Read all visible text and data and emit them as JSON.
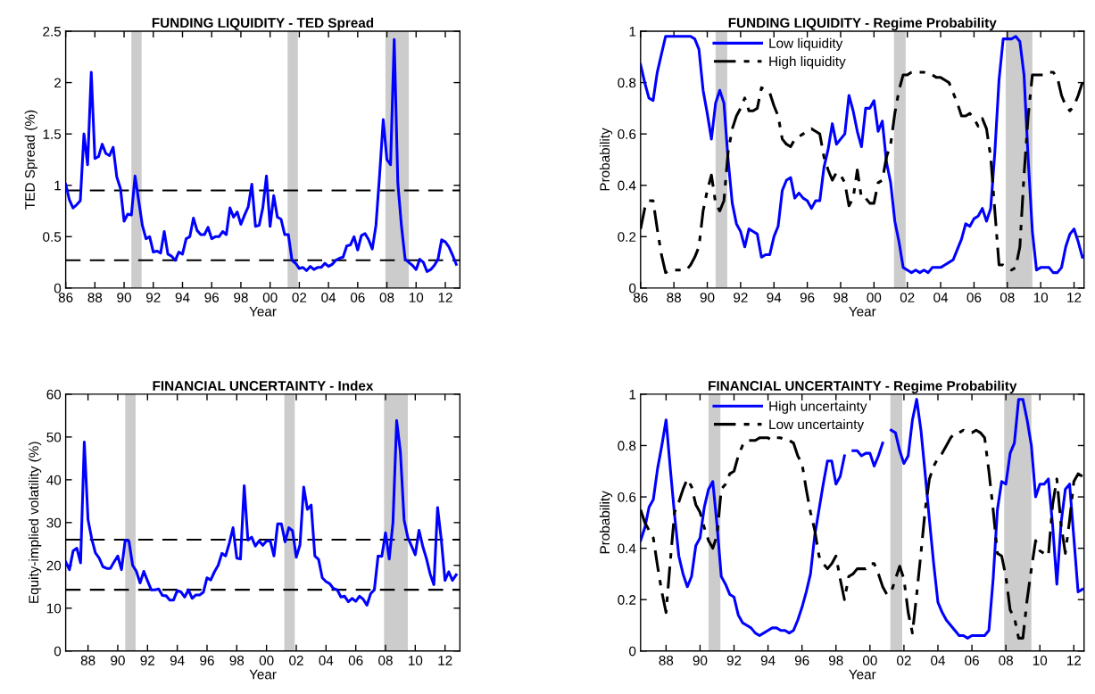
{
  "chart_data": [
    {
      "type": "line",
      "title": "FUNDING LIQUIDITY - TED Spread",
      "xlabel": "Year",
      "ylabel": "TED Spread (%)",
      "x": [
        1986,
        1986.25,
        1986.5,
        1986.75,
        1987,
        1987.25,
        1987.5,
        1987.75,
        1988,
        1988.25,
        1988.5,
        1988.75,
        1989,
        1989.25,
        1989.5,
        1989.75,
        1990,
        1990.25,
        1990.5,
        1990.75,
        1991,
        1991.25,
        1991.5,
        1991.75,
        1992,
        1992.25,
        1992.5,
        1992.75,
        1993,
        1993.25,
        1993.5,
        1993.75,
        1994,
        1994.25,
        1994.5,
        1994.75,
        1995,
        1995.25,
        1995.5,
        1995.75,
        1996,
        1996.25,
        1996.5,
        1996.75,
        1997,
        1997.25,
        1997.5,
        1997.75,
        1998,
        1998.25,
        1998.5,
        1998.75,
        1999,
        1999.25,
        1999.5,
        1999.75,
        2000,
        2000.25,
        2000.5,
        2000.75,
        2001,
        2001.25,
        2001.5,
        2001.75,
        2002,
        2002.25,
        2002.5,
        2002.75,
        2003,
        2003.25,
        2003.5,
        2003.75,
        2004,
        2004.25,
        2004.5,
        2004.75,
        2005,
        2005.25,
        2005.5,
        2005.75,
        2006,
        2006.25,
        2006.5,
        2006.75,
        2007,
        2007.25,
        2007.5,
        2007.75,
        2008,
        2008.25,
        2008.5,
        2008.75,
        2009,
        2009.25,
        2009.5,
        2009.75,
        2010,
        2010.25,
        2010.5,
        2010.75,
        2011,
        2011.25,
        2011.5,
        2011.75,
        2012,
        2012.25,
        2012.5,
        2012.75
      ],
      "series": [
        {
          "color": "#0000ff",
          "line_style": "solid",
          "values": [
            1.01,
            0.86,
            0.78,
            0.81,
            0.85,
            1.5,
            1.2,
            2.1,
            1.26,
            1.28,
            1.4,
            1.31,
            1.29,
            1.37,
            1.08,
            0.97,
            0.65,
            0.72,
            0.71,
            1.09,
            0.85,
            0.61,
            0.48,
            0.5,
            0.35,
            0.36,
            0.34,
            0.55,
            0.33,
            0.31,
            0.27,
            0.35,
            0.33,
            0.48,
            0.5,
            0.68,
            0.56,
            0.52,
            0.52,
            0.59,
            0.48,
            0.5,
            0.5,
            0.55,
            0.52,
            0.78,
            0.69,
            0.74,
            0.62,
            0.71,
            0.79,
            1.01,
            0.6,
            0.61,
            0.78,
            1.09,
            0.6,
            0.9,
            0.69,
            0.67,
            0.52,
            0.52,
            0.27,
            0.24,
            0.19,
            0.2,
            0.17,
            0.21,
            0.18,
            0.2,
            0.2,
            0.24,
            0.21,
            0.23,
            0.27,
            0.29,
            0.3,
            0.41,
            0.42,
            0.5,
            0.37,
            0.51,
            0.53,
            0.47,
            0.38,
            0.61,
            1.1,
            1.64,
            1.25,
            1.2,
            2.42,
            1.02,
            0.6,
            0.28,
            0.25,
            0.22,
            0.18,
            0.28,
            0.25,
            0.16,
            0.18,
            0.22,
            0.28,
            0.47,
            0.45,
            0.4,
            0.32,
            0.23
          ]
        }
      ],
      "xlim": [
        1986,
        2013
      ],
      "xticks": [
        {
          "value": 1986,
          "label": "86"
        },
        {
          "value": 1988,
          "label": "88"
        },
        {
          "value": 1990,
          "label": "90"
        },
        {
          "value": 1992,
          "label": "92"
        },
        {
          "value": 1994,
          "label": "94"
        },
        {
          "value": 1996,
          "label": "96"
        },
        {
          "value": 1998,
          "label": "98"
        },
        {
          "value": 2000,
          "label": "00"
        },
        {
          "value": 2002,
          "label": "02"
        },
        {
          "value": 2004,
          "label": "04"
        },
        {
          "value": 2006,
          "label": "06"
        },
        {
          "value": 2008,
          "label": "08"
        },
        {
          "value": 2010,
          "label": "10"
        },
        {
          "value": 2012,
          "label": "12"
        }
      ],
      "ylim": [
        0,
        2.5
      ],
      "yticks": [
        0,
        0.5,
        1,
        1.5,
        2,
        2.5
      ],
      "ref_lines": [
        {
          "axis": "y",
          "value": 0.95,
          "color": "#000000",
          "line_style": "dashed"
        },
        {
          "axis": "y",
          "value": 0.27,
          "color": "#000000",
          "line_style": "dashed"
        }
      ],
      "bands": [
        {
          "axis": "x",
          "from": 1990.5,
          "to": 1991.2,
          "color": "#cccccc"
        },
        {
          "axis": "x",
          "from": 2001.2,
          "to": 2001.9,
          "color": "#cccccc"
        },
        {
          "axis": "x",
          "from": 2007.9,
          "to": 2009.5,
          "color": "#cccccc"
        }
      ],
      "grid": false
    },
    {
      "type": "line",
      "title": "FUNDING LIQUIDITY - Regime Probability",
      "xlabel": "Year",
      "ylabel": "Probability",
      "x": [
        1986,
        1986.25,
        1986.5,
        1986.75,
        1987,
        1987.25,
        1987.5,
        1987.75,
        1988,
        1988.25,
        1988.5,
        1988.75,
        1989,
        1989.25,
        1989.5,
        1989.75,
        1990,
        1990.25,
        1990.5,
        1990.75,
        1991,
        1991.25,
        1991.5,
        1991.75,
        1992,
        1992.25,
        1992.5,
        1992.75,
        1993,
        1993.25,
        1993.5,
        1993.75,
        1994,
        1994.25,
        1994.5,
        1994.75,
        1995,
        1995.25,
        1995.5,
        1995.75,
        1996,
        1996.25,
        1996.5,
        1996.75,
        1997,
        1997.25,
        1997.5,
        1997.75,
        1998,
        1998.25,
        1998.5,
        1998.75,
        1999,
        1999.25,
        1999.5,
        1999.75,
        2000,
        2000.25,
        2000.5,
        2000.75,
        2001,
        2001.25,
        2001.5,
        2001.75,
        2002,
        2002.25,
        2002.5,
        2002.75,
        2003,
        2003.25,
        2003.5,
        2003.75,
        2004,
        2004.25,
        2004.5,
        2004.75,
        2005,
        2005.25,
        2005.5,
        2005.75,
        2006,
        2006.25,
        2006.5,
        2006.75,
        2007,
        2007.25,
        2007.5,
        2007.75,
        2008,
        2008.25,
        2008.5,
        2008.75,
        2009,
        2009.25,
        2009.5,
        2009.75,
        2010,
        2010.25,
        2010.5,
        2010.75,
        2011,
        2011.25,
        2011.5,
        2011.75,
        2012,
        2012.25,
        2012.5
      ],
      "series": [
        {
          "name": "Low liquidity",
          "color": "#0000ff",
          "line_style": "solid",
          "values": [
            0.87,
            0.8,
            0.74,
            0.73,
            0.84,
            0.91,
            0.98,
            0.98,
            0.98,
            0.98,
            0.98,
            0.98,
            0.98,
            0.97,
            0.93,
            0.77,
            0.68,
            0.58,
            0.72,
            0.77,
            0.72,
            0.5,
            0.33,
            0.25,
            0.22,
            0.16,
            0.23,
            0.22,
            0.21,
            0.12,
            0.13,
            0.13,
            0.2,
            0.24,
            0.38,
            0.42,
            0.43,
            0.35,
            0.37,
            0.35,
            0.34,
            0.31,
            0.34,
            0.34,
            0.47,
            0.54,
            0.64,
            0.56,
            0.58,
            0.6,
            0.75,
            0.69,
            0.61,
            0.55,
            0.7,
            0.7,
            0.73,
            0.61,
            0.65,
            0.49,
            0.41,
            0.26,
            0.18,
            0.08,
            0.07,
            0.06,
            0.07,
            0.06,
            0.07,
            0.06,
            0.08,
            0.08,
            0.08,
            0.09,
            0.1,
            0.11,
            0.15,
            0.19,
            0.25,
            0.24,
            0.27,
            0.28,
            0.31,
            0.26,
            0.31,
            0.53,
            0.81,
            0.97,
            0.97,
            0.97,
            0.98,
            0.96,
            0.83,
            0.5,
            0.22,
            0.07,
            0.08,
            0.08,
            0.08,
            0.06,
            0.06,
            0.08,
            0.16,
            0.21,
            0.23,
            0.18,
            0.12
          ]
        },
        {
          "name": "High liquidity",
          "color": "#000000",
          "line_style": "dashdot",
          "values": [
            0.23,
            0.31,
            0.34,
            0.34,
            0.23,
            0.13,
            0.06,
            0.07,
            0.07,
            0.07,
            0.07,
            0.07,
            0.09,
            0.12,
            0.16,
            0.3,
            0.38,
            0.44,
            0.33,
            0.3,
            0.34,
            0.53,
            0.62,
            0.67,
            0.7,
            0.74,
            0.69,
            0.69,
            0.7,
            0.78,
            0.77,
            0.76,
            0.71,
            0.67,
            0.58,
            0.56,
            0.55,
            0.58,
            0.59,
            0.6,
            0.61,
            0.62,
            0.61,
            0.6,
            0.51,
            0.46,
            0.42,
            0.45,
            0.44,
            0.41,
            0.32,
            0.35,
            0.46,
            0.35,
            0.35,
            0.33,
            0.33,
            0.41,
            0.42,
            0.51,
            0.56,
            0.68,
            0.77,
            0.83,
            0.83,
            0.84,
            0.84,
            0.84,
            0.84,
            0.83,
            0.83,
            0.82,
            0.82,
            0.81,
            0.8,
            0.76,
            0.72,
            0.67,
            0.67,
            0.68,
            0.66,
            0.63,
            0.66,
            0.62,
            0.51,
            0.3,
            0.09,
            0.09,
            0.08,
            0.07,
            0.08,
            0.16,
            0.44,
            0.67,
            0.83,
            0.83,
            0.83,
            0.83,
            0.84,
            0.84,
            0.82,
            0.75,
            0.71,
            0.69,
            0.71,
            0.75,
            0.8
          ]
        }
      ],
      "xlim": [
        1986,
        2012.6
      ],
      "xticks": [
        {
          "value": 1986,
          "label": "86"
        },
        {
          "value": 1988,
          "label": "88"
        },
        {
          "value": 1990,
          "label": "90"
        },
        {
          "value": 1992,
          "label": "92"
        },
        {
          "value": 1994,
          "label": "94"
        },
        {
          "value": 1996,
          "label": "96"
        },
        {
          "value": 1998,
          "label": "98"
        },
        {
          "value": 2000,
          "label": "00"
        },
        {
          "value": 2002,
          "label": "02"
        },
        {
          "value": 2004,
          "label": "04"
        },
        {
          "value": 2006,
          "label": "06"
        },
        {
          "value": 2008,
          "label": "08"
        },
        {
          "value": 2010,
          "label": "10"
        },
        {
          "value": 2012,
          "label": "12"
        }
      ],
      "ylim": [
        0,
        1
      ],
      "yticks": [
        0,
        0.2,
        0.4,
        0.6,
        0.8,
        1
      ],
      "bands": [
        {
          "axis": "x",
          "from": 1990.5,
          "to": 1991.2,
          "color": "#cccccc"
        },
        {
          "axis": "x",
          "from": 2001.2,
          "to": 2001.9,
          "color": "#cccccc"
        },
        {
          "axis": "x",
          "from": 2007.9,
          "to": 2009.5,
          "color": "#cccccc"
        }
      ],
      "legend": "top",
      "grid": false
    },
    {
      "type": "line",
      "title": "FINANCIAL UNCERTAINTY - Index",
      "xlabel": "Year",
      "ylabel": "Equity-implied volatility (%)",
      "x": [
        1986.5,
        1986.75,
        1987,
        1987.25,
        1987.5,
        1987.75,
        1988,
        1988.25,
        1988.5,
        1988.75,
        1989,
        1989.25,
        1989.5,
        1989.75,
        1990,
        1990.25,
        1990.5,
        1990.75,
        1991,
        1991.25,
        1991.5,
        1991.75,
        1992,
        1992.25,
        1992.5,
        1992.75,
        1993,
        1993.25,
        1993.5,
        1993.75,
        1994,
        1994.25,
        1994.5,
        1994.75,
        1995,
        1995.25,
        1995.5,
        1995.75,
        1996,
        1996.25,
        1996.5,
        1996.75,
        1997,
        1997.25,
        1997.5,
        1997.75,
        1998,
        1998.25,
        1998.5,
        1998.75,
        1999,
        1999.25,
        1999.5,
        1999.75,
        2000,
        2000.25,
        2000.5,
        2000.75,
        2001,
        2001.25,
        2001.5,
        2001.75,
        2002,
        2002.25,
        2002.5,
        2002.75,
        2003,
        2003.25,
        2003.5,
        2003.75,
        2004,
        2004.25,
        2004.5,
        2004.75,
        2005,
        2005.25,
        2005.5,
        2005.75,
        2006,
        2006.25,
        2006.5,
        2006.75,
        2007,
        2007.25,
        2007.5,
        2007.75,
        2008,
        2008.25,
        2008.5,
        2008.75,
        2009,
        2009.25,
        2009.5,
        2009.75,
        2010,
        2010.25,
        2010.5,
        2010.75,
        2011,
        2011.25,
        2011.5,
        2011.75,
        2012,
        2012.25,
        2012.5,
        2012.75
      ],
      "series": [
        {
          "color": "#0000ff",
          "line_style": "solid",
          "values": [
            20.8,
            19.0,
            23.4,
            24.0,
            20.6,
            48.8,
            30.7,
            26.2,
            22.9,
            21.7,
            19.7,
            19.3,
            19.3,
            20.8,
            22.2,
            19.0,
            25.9,
            25.7,
            20.0,
            18.6,
            15.9,
            18.6,
            16.4,
            14.3,
            14.3,
            14.5,
            13.0,
            12.9,
            11.9,
            11.9,
            14.1,
            13.8,
            12.6,
            14.3,
            12.3,
            13.1,
            13.1,
            13.7,
            17.1,
            16.6,
            18.5,
            20.0,
            22.8,
            22.2,
            25.2,
            28.8,
            21.7,
            21.5,
            38.6,
            25.9,
            26.6,
            24.5,
            25.7,
            24.7,
            25.7,
            25.7,
            22.2,
            29.7,
            29.7,
            25.5,
            28.8,
            28.1,
            21.9,
            24.8,
            38.3,
            33.1,
            34.1,
            22.2,
            21.4,
            17.1,
            16.2,
            15.7,
            14.6,
            14.3,
            12.6,
            12.8,
            11.5,
            12.3,
            11.6,
            12.8,
            12.1,
            10.7,
            13.4,
            14.3,
            22.2,
            22.1,
            27.6,
            21.5,
            30.0,
            53.8,
            46.5,
            30.6,
            26.5,
            24.5,
            22.5,
            28.2,
            24.5,
            21.6,
            18.0,
            15.5,
            33.5,
            26.0,
            16.5,
            18.5,
            16.5,
            17.8
          ]
        }
      ],
      "xlim": [
        1986.5,
        2013
      ],
      "xticks": [
        {
          "value": 1988,
          "label": "88"
        },
        {
          "value": 1990,
          "label": "90"
        },
        {
          "value": 1992,
          "label": "92"
        },
        {
          "value": 1994,
          "label": "94"
        },
        {
          "value": 1996,
          "label": "96"
        },
        {
          "value": 1998,
          "label": "98"
        },
        {
          "value": 2000,
          "label": "00"
        },
        {
          "value": 2002,
          "label": "02"
        },
        {
          "value": 2004,
          "label": "04"
        },
        {
          "value": 2006,
          "label": "06"
        },
        {
          "value": 2008,
          "label": "08"
        },
        {
          "value": 2010,
          "label": "10"
        },
        {
          "value": 2012,
          "label": "12"
        }
      ],
      "ylim": [
        0,
        60
      ],
      "yticks": [
        0,
        10,
        20,
        30,
        40,
        50,
        60
      ],
      "ref_lines": [
        {
          "axis": "y",
          "value": 26.0,
          "color": "#000000",
          "line_style": "dashed"
        },
        {
          "axis": "y",
          "value": 14.3,
          "color": "#000000",
          "line_style": "dashed"
        }
      ],
      "bands": [
        {
          "axis": "x",
          "from": 1990.5,
          "to": 1991.2,
          "color": "#cccccc"
        },
        {
          "axis": "x",
          "from": 2001.2,
          "to": 2001.9,
          "color": "#cccccc"
        },
        {
          "axis": "x",
          "from": 2007.9,
          "to": 2009.5,
          "color": "#cccccc"
        }
      ],
      "grid": false
    },
    {
      "type": "line",
      "title": "FINANCIAL UNCERTAINTY - Regime Probability",
      "xlabel": "Year",
      "ylabel": "Probability",
      "x": [
        1986.5,
        1986.75,
        1987,
        1987.25,
        1987.5,
        1987.75,
        1988,
        1988.25,
        1988.5,
        1988.75,
        1989,
        1989.25,
        1989.5,
        1989.75,
        1990,
        1990.25,
        1990.5,
        1990.75,
        1991,
        1991.25,
        1991.5,
        1991.75,
        1992,
        1992.25,
        1992.5,
        1992.75,
        1993,
        1993.25,
        1993.5,
        1993.75,
        1994,
        1994.25,
        1994.5,
        1994.75,
        1995,
        1995.25,
        1995.5,
        1995.75,
        1996,
        1996.25,
        1996.5,
        1996.75,
        1997,
        1997.25,
        1997.5,
        1997.75,
        1998,
        1998.25,
        1998.5,
        1998.75,
        1999,
        1999.25,
        1999.5,
        1999.75,
        2000,
        2000.25,
        2000.5,
        2000.75,
        2001,
        2001.25,
        2001.5,
        2001.75,
        2002,
        2002.25,
        2002.5,
        2002.75,
        2003,
        2003.25,
        2003.5,
        2003.75,
        2004,
        2004.25,
        2004.5,
        2004.75,
        2005,
        2005.25,
        2005.5,
        2005.75,
        2006,
        2006.25,
        2006.5,
        2006.75,
        2007,
        2007.25,
        2007.5,
        2007.75,
        2008,
        2008.25,
        2008.5,
        2008.75,
        2009,
        2009.25,
        2009.5,
        2009.75,
        2010,
        2010.25,
        2010.5,
        2010.75,
        2011,
        2011.25,
        2011.5,
        2011.75,
        2012,
        2012.25,
        2012.5
      ],
      "series": [
        {
          "name": "High uncertainty",
          "color": "#0000ff",
          "line_style": "solid",
          "values": [
            0.43,
            0.48,
            0.56,
            0.59,
            0.71,
            0.8,
            0.9,
            0.71,
            0.53,
            0.37,
            0.3,
            0.25,
            0.29,
            0.41,
            0.44,
            0.56,
            0.63,
            0.66,
            0.49,
            0.29,
            0.26,
            0.22,
            0.21,
            0.14,
            0.11,
            0.1,
            0.09,
            0.07,
            0.06,
            0.07,
            0.08,
            0.09,
            0.09,
            0.08,
            0.08,
            0.07,
            0.08,
            0.12,
            0.17,
            0.23,
            0.3,
            0.45,
            0.55,
            0.65,
            0.74,
            0.74,
            0.65,
            0.68,
            0.76,
            null,
            0.78,
            0.78,
            0.76,
            0.77,
            0.77,
            0.72,
            0.76,
            0.81,
            null,
            0.86,
            0.85,
            0.78,
            0.73,
            0.76,
            0.9,
            0.98,
            0.86,
            0.69,
            0.51,
            0.34,
            0.19,
            0.15,
            0.12,
            0.1,
            0.08,
            0.06,
            0.06,
            0.05,
            0.06,
            0.06,
            0.06,
            0.06,
            0.08,
            0.28,
            0.55,
            0.66,
            0.65,
            0.77,
            0.81,
            0.98,
            0.98,
            0.9,
            0.8,
            0.6,
            0.65,
            0.65,
            0.67,
            0.49,
            0.26,
            0.5,
            0.63,
            0.65,
            0.44,
            0.23,
            0.24
          ]
        },
        {
          "name": "Low uncertainty",
          "color": "#000000",
          "line_style": "dashdot",
          "values": [
            0.55,
            0.5,
            0.47,
            0.44,
            0.33,
            0.23,
            0.15,
            0.35,
            0.54,
            0.58,
            0.63,
            0.67,
            0.64,
            0.57,
            0.54,
            0.48,
            0.43,
            0.4,
            0.45,
            0.63,
            0.65,
            0.69,
            0.7,
            0.76,
            0.8,
            0.82,
            0.82,
            0.82,
            0.83,
            0.83,
            0.83,
            0.82,
            0.83,
            0.83,
            0.82,
            0.82,
            0.81,
            0.76,
            0.73,
            0.63,
            0.54,
            0.47,
            0.37,
            0.34,
            0.32,
            0.34,
            0.37,
            0.28,
            0.2,
            0.29,
            0.3,
            0.32,
            0.32,
            0.32,
            0.34,
            0.34,
            0.3,
            0.25,
            0.22,
            0.23,
            0.28,
            0.33,
            0.28,
            0.15,
            0.07,
            0.22,
            0.38,
            0.55,
            0.67,
            0.72,
            0.75,
            0.77,
            0.8,
            0.83,
            0.85,
            0.85,
            0.86,
            0.85,
            0.85,
            0.86,
            0.85,
            0.83,
            0.7,
            0.55,
            0.38,
            0.37,
            0.29,
            0.16,
            0.13,
            0.05,
            0.05,
            0.2,
            0.32,
            0.43,
            0.39,
            0.38,
            0.37,
            0.57,
            0.67,
            0.49,
            0.38,
            0.51,
            0.66,
            0.69,
            0.68
          ]
        }
      ],
      "xlim": [
        1986.5,
        2012.6
      ],
      "xticks": [
        {
          "value": 1988,
          "label": "88"
        },
        {
          "value": 1990,
          "label": "90"
        },
        {
          "value": 1992,
          "label": "92"
        },
        {
          "value": 1994,
          "label": "94"
        },
        {
          "value": 1996,
          "label": "96"
        },
        {
          "value": 1998,
          "label": "98"
        },
        {
          "value": 2000,
          "label": "00"
        },
        {
          "value": 2002,
          "label": "02"
        },
        {
          "value": 2004,
          "label": "04"
        },
        {
          "value": 2006,
          "label": "06"
        },
        {
          "value": 2008,
          "label": "08"
        },
        {
          "value": 2010,
          "label": "10"
        },
        {
          "value": 2012,
          "label": "12"
        }
      ],
      "ylim": [
        0,
        1
      ],
      "yticks": [
        0,
        0.2,
        0.4,
        0.6,
        0.8,
        1
      ],
      "bands": [
        {
          "axis": "x",
          "from": 1990.5,
          "to": 1991.2,
          "color": "#cccccc"
        },
        {
          "axis": "x",
          "from": 2001.2,
          "to": 2001.9,
          "color": "#cccccc"
        },
        {
          "axis": "x",
          "from": 2007.9,
          "to": 2009.5,
          "color": "#cccccc"
        }
      ],
      "legend": "top",
      "grid": false
    }
  ]
}
